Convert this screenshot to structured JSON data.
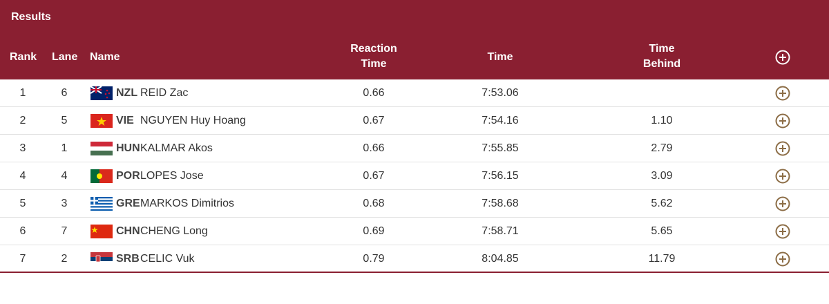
{
  "header": {
    "title": "Results"
  },
  "table": {
    "columns": [
      "Rank",
      "Lane",
      "Name",
      "Reaction Time",
      "Time",
      "Time Behind"
    ],
    "rows": [
      {
        "rank": "1",
        "lane": "6",
        "noc": "NZL",
        "name": "REID Zac",
        "reaction": "0.66",
        "time": "7:53.06"
      },
      {
        "rank": "2",
        "lane": "5",
        "noc": "VIE",
        "name": "NGUYEN Huy Hoang",
        "reaction": "0.67",
        "time": "7:54.16",
        "behind": "1.10"
      },
      {
        "rank": "3",
        "lane": "1",
        "noc": "HUN",
        "name": "KALMAR Akos",
        "reaction": "0.66",
        "time": "7:55.85",
        "behind": "2.79"
      },
      {
        "rank": "4",
        "lane": "4",
        "noc": "POR",
        "name": "LOPES Jose",
        "reaction": "0.67",
        "time": "7:56.15",
        "behind": "3.09"
      },
      {
        "rank": "5",
        "lane": "3",
        "noc": "GRE",
        "name": "MARKOS Dimitrios",
        "reaction": "0.68",
        "time": "7:58.68",
        "behind": "5.62"
      },
      {
        "rank": "6",
        "lane": "7",
        "noc": "CHN",
        "name": "CHENG Long",
        "reaction": "0.69",
        "time": "7:58.71",
        "behind": "5.65"
      },
      {
        "rank": "7",
        "lane": "2",
        "noc": "SRB",
        "name": "CELIC Vuk",
        "reaction": "0.79",
        "time": "8:04.85",
        "behind": "11.79"
      }
    ]
  }
}
